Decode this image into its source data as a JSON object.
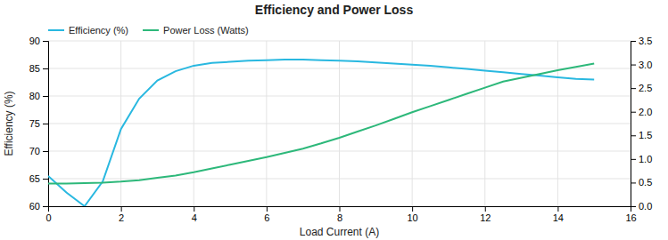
{
  "chart_data": {
    "type": "line",
    "title": "Efficiency and Power Loss",
    "x_label": "Load Current (A)",
    "y_label": "Efficiency (%)",
    "x": [
      0,
      0.5,
      1.0,
      1.5,
      2.0,
      2.5,
      3.0,
      3.5,
      4.0,
      4.5,
      5.0,
      5.5,
      6.0,
      6.5,
      7.0,
      7.5,
      8.0,
      8.5,
      9.0,
      9.5,
      10.0,
      10.5,
      11.0,
      11.5,
      12.0,
      12.5,
      13.0,
      13.5,
      14.0,
      14.5,
      15.0
    ],
    "xlim": [
      0,
      16
    ],
    "xticks": [
      0,
      2,
      4,
      6,
      8,
      10,
      12,
      14,
      16
    ],
    "ylim": [
      60,
      90
    ],
    "yticks": [
      60,
      65,
      70,
      75,
      80,
      85,
      90
    ],
    "y2lim": [
      0.0,
      3.5
    ],
    "y2ticks": [
      {
        "value": 0.0,
        "label": "0.0"
      },
      0.5,
      {
        "value": 1.0,
        "label": "1.0"
      },
      1.5,
      {
        "value": 2.0,
        "label": "2.0"
      },
      2.5,
      {
        "value": 3.0,
        "label": "3.0"
      },
      3.5
    ],
    "grid": true,
    "legend": "upper left",
    "series": [
      {
        "name": "Efficiency (%)",
        "color": "#29b8e0",
        "values": [
          65.5,
          62.5,
          60.0,
          64.5,
          74.0,
          79.5,
          82.8,
          84.5,
          85.5,
          86.0,
          86.2,
          86.4,
          86.5,
          86.6,
          86.6,
          86.5,
          86.4,
          86.3,
          86.1,
          85.9,
          85.7,
          85.5,
          85.2,
          84.9,
          84.6,
          84.3,
          84.0,
          83.7,
          83.4,
          83.1,
          83.0
        ]
      },
      {
        "name": "Power Loss (Watts)",
        "color": "#2db87a",
        "axis": "y2",
        "values": [
          0.48,
          0.48,
          0.49,
          0.5,
          0.52,
          0.55,
          0.6,
          0.65,
          0.72,
          0.8,
          0.88,
          0.96,
          1.04,
          1.13,
          1.22,
          1.33,
          1.45,
          1.58,
          1.71,
          1.85,
          1.99,
          2.12,
          2.25,
          2.38,
          2.51,
          2.64,
          2.72,
          2.8,
          2.88,
          2.95,
          3.02
        ]
      }
    ]
  }
}
